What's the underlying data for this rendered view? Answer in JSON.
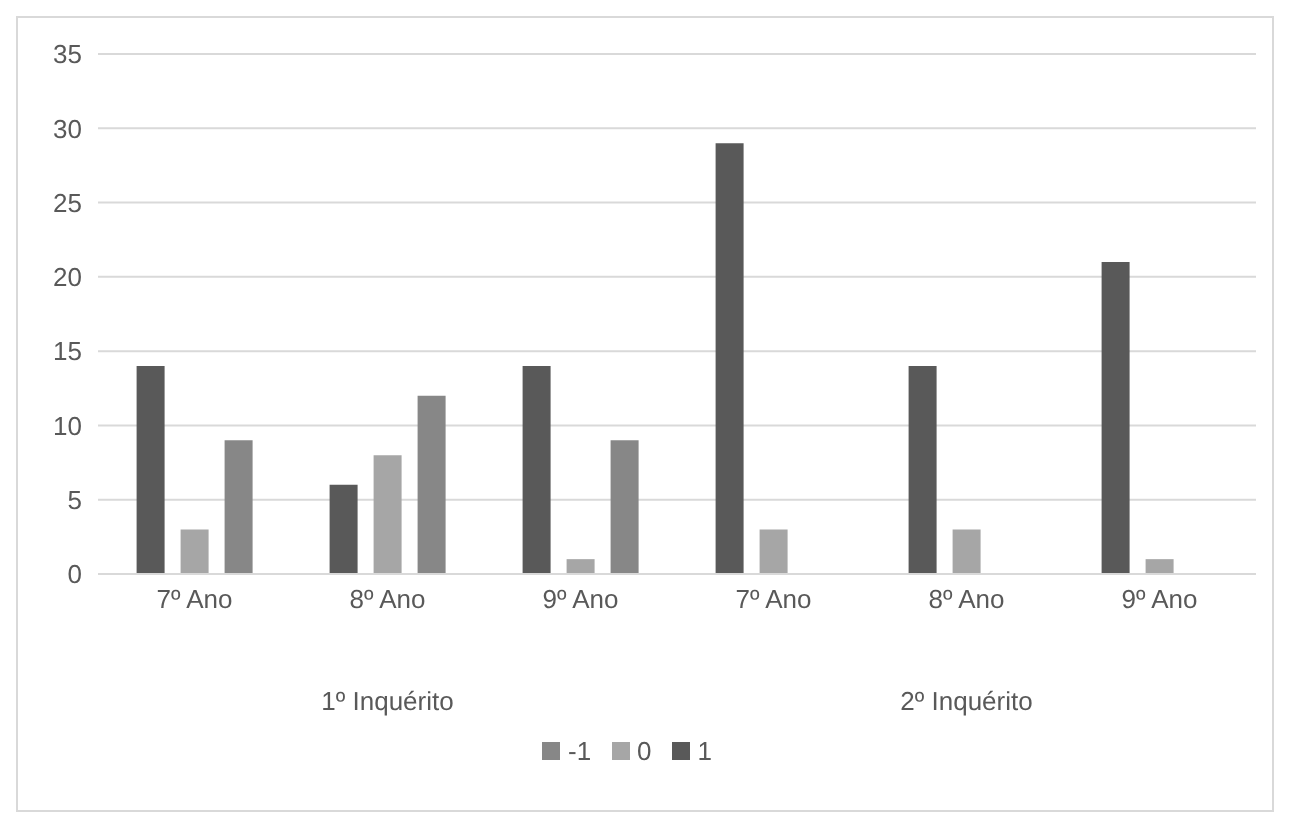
{
  "chart_data": {
    "type": "bar",
    "categories": [
      "7º Ano",
      "8º Ano",
      "9º Ano",
      "7º Ano",
      "8º Ano",
      "9º Ano"
    ],
    "series": [
      {
        "name": "1",
        "color": "#595959",
        "values": [
          14,
          6,
          14,
          29,
          14,
          21
        ]
      },
      {
        "name": "0",
        "color": "#a6a6a6",
        "values": [
          3,
          8,
          1,
          3,
          3,
          1
        ]
      },
      {
        "name": "-1",
        "color": "#878787",
        "values": [
          9,
          12,
          9,
          0,
          0,
          0
        ]
      }
    ],
    "annotations": [
      "1º Inquérito",
      "2º Inquérito"
    ],
    "ylim": [
      0,
      35
    ],
    "yticks": [
      0,
      5,
      10,
      15,
      20,
      25,
      30,
      35
    ],
    "grid": "y",
    "legend": "bottom"
  }
}
